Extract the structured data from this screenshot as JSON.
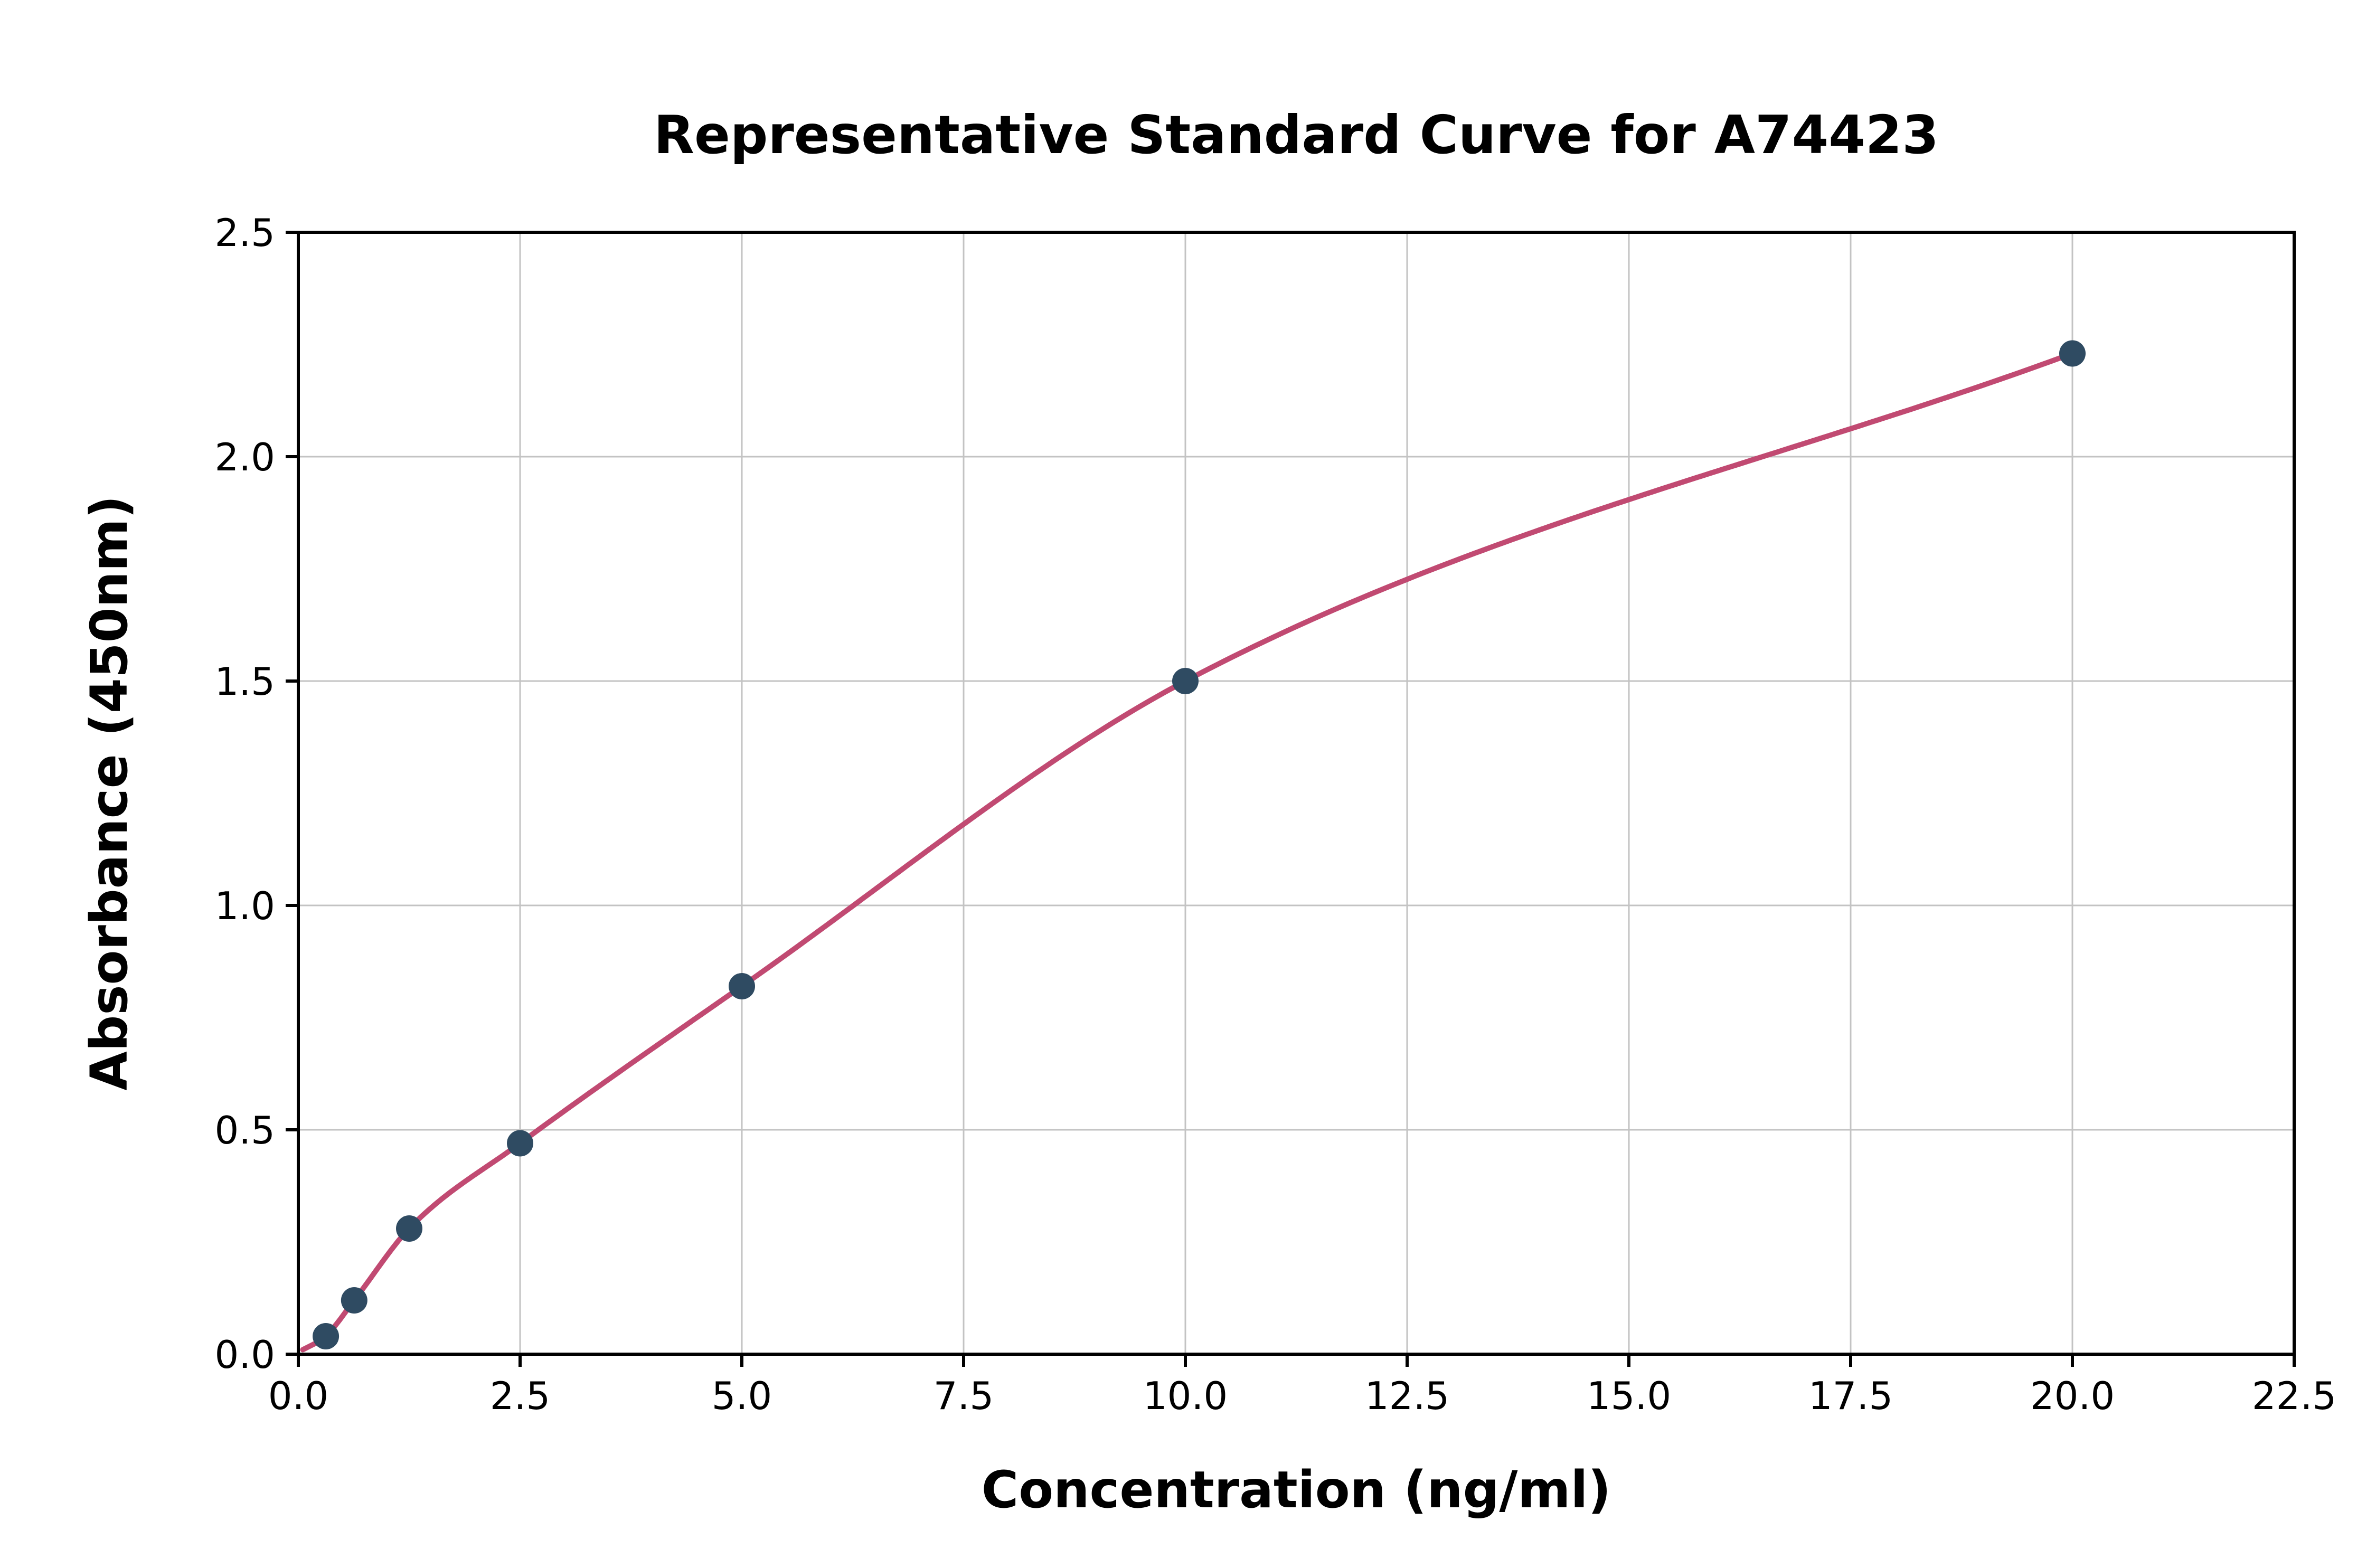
{
  "page": {
    "background": "#ffffff"
  },
  "chart_data": {
    "type": "scatter",
    "title": "Representative Standard Curve for A74423",
    "xlabel": "Concentration (ng/ml)",
    "ylabel": "Absorbance (450nm)",
    "xlim": [
      0,
      22.5
    ],
    "ylim": [
      0,
      2.5
    ],
    "xticks": [
      0,
      2.5,
      5,
      7.5,
      10,
      12.5,
      15,
      17.5,
      20,
      22.5
    ],
    "yticks": [
      0,
      0.5,
      1,
      1.5,
      2,
      2.5
    ],
    "tick_decimals": 1,
    "grid": true,
    "legend": "none",
    "series": [
      {
        "name": "standard-points",
        "kind": "scatter",
        "x": [
          0.31,
          0.63,
          1.25,
          2.5,
          5.0,
          10.0,
          20.0
        ],
        "y": [
          0.04,
          0.12,
          0.28,
          0.47,
          0.82,
          1.5,
          2.23
        ],
        "color": "#2f4b62"
      },
      {
        "name": "fitted-curve",
        "kind": "line",
        "color": "#c14a72",
        "anchor": {
          "x": 0.05,
          "y": 0.01
        }
      }
    ],
    "colors": {
      "grid": "#c3c3c3",
      "axis": "#000000",
      "marker": "#2f4b62",
      "line": "#c14a72",
      "background": "#ffffff"
    }
  }
}
